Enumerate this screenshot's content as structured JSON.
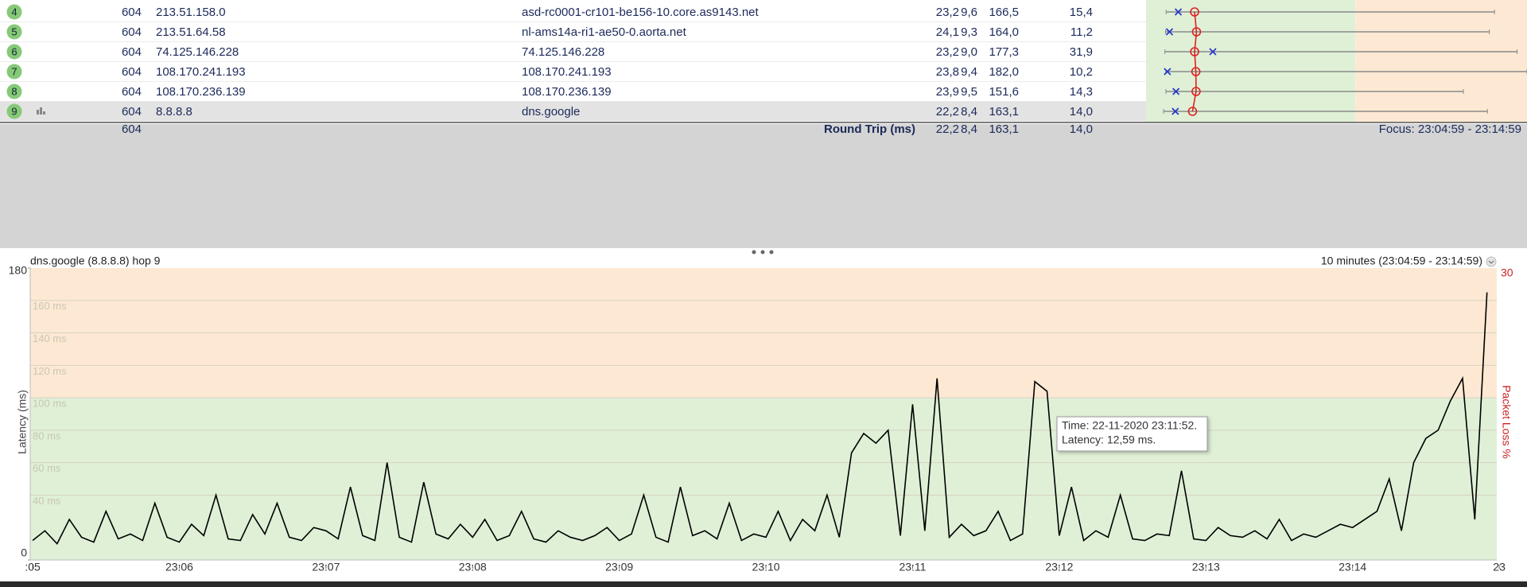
{
  "table": {
    "rows": [
      [
        "4",
        "604",
        "213.51.158.0",
        "asd-rc0001-cr101-be156-10.core.as9143.net",
        "23,2",
        "9,6",
        "166,5",
        "15,4"
      ],
      [
        "5",
        "604",
        "213.51.64.58",
        "nl-ams14a-ri1-ae50-0.aorta.net",
        "24,1",
        "9,3",
        "164,0",
        "11,2"
      ],
      [
        "6",
        "604",
        "74.125.146.228",
        "74.125.146.228",
        "23,2",
        "9,0",
        "177,3",
        "31,9"
      ],
      [
        "7",
        "604",
        "108.170.241.193",
        "108.170.241.193",
        "23,8",
        "9,4",
        "182,0",
        "10,2"
      ],
      [
        "8",
        "604",
        "108.170.236.139",
        "108.170.236.139",
        "23,9",
        "9,5",
        "151,6",
        "14,3"
      ],
      [
        "9",
        "604",
        "8.8.8.8",
        "dns.google",
        "22,2",
        "8,4",
        "163,1",
        "14,0"
      ]
    ],
    "summary": {
      "count": "604",
      "label": "Round Trip (ms)",
      "avg": "22,2",
      "min": "8,4",
      "max": "163,1",
      "cur": "14,0"
    },
    "focus": "Focus: 23:04:59 - 23:14:59"
  },
  "warning_threshold": 100,
  "chart_data": {
    "type": "line",
    "title": "dns.google (8.8.8.8) hop 9",
    "range_label": "10 minutes (23:04:59 - 23:14:59)",
    "y_label": "Latency (ms)",
    "y2_label": "Packet Loss %",
    "color": "#000000",
    "x": [
      "23:05:00",
      "23:05:05",
      "23:05:10",
      "23:05:15",
      "23:05:20",
      "23:05:25",
      "23:05:30",
      "23:05:35",
      "23:05:40",
      "23:05:45",
      "23:05:50",
      "23:05:55",
      "23:06:00",
      "23:06:05",
      "23:06:10",
      "23:06:15",
      "23:06:20",
      "23:06:25",
      "23:06:30",
      "23:06:35",
      "23:06:40",
      "23:06:45",
      "23:06:50",
      "23:06:55",
      "23:07:00",
      "23:07:05",
      "23:07:10",
      "23:07:15",
      "23:07:20",
      "23:07:25",
      "23:07:30",
      "23:07:35",
      "23:07:40",
      "23:07:45",
      "23:07:50",
      "23:07:55",
      "23:08:00",
      "23:08:05",
      "23:08:10",
      "23:08:15",
      "23:08:20",
      "23:08:25",
      "23:08:30",
      "23:08:35",
      "23:08:40",
      "23:08:45",
      "23:08:50",
      "23:08:55",
      "23:09:00",
      "23:09:05",
      "23:09:10",
      "23:09:15",
      "23:09:20",
      "23:09:25",
      "23:09:30",
      "23:09:35",
      "23:09:40",
      "23:09:45",
      "23:09:50",
      "23:09:55",
      "23:10:00",
      "23:10:05",
      "23:10:10",
      "23:10:15",
      "23:10:20",
      "23:10:25",
      "23:10:30",
      "23:10:35",
      "23:10:40",
      "23:10:45",
      "23:10:50",
      "23:10:55",
      "23:11:00",
      "23:11:05",
      "23:11:10",
      "23:11:15",
      "23:11:20",
      "23:11:25",
      "23:11:30",
      "23:11:35",
      "23:11:40",
      "23:11:45",
      "23:11:50",
      "23:11:55",
      "23:12:00",
      "23:12:05",
      "23:12:10",
      "23:12:15",
      "23:12:20",
      "23:12:25",
      "23:12:30",
      "23:12:35",
      "23:12:40",
      "23:12:45",
      "23:12:50",
      "23:12:55",
      "23:13:00",
      "23:13:05",
      "23:13:10",
      "23:13:15",
      "23:13:20",
      "23:13:25",
      "23:13:30",
      "23:13:35",
      "23:13:40",
      "23:13:45",
      "23:13:50",
      "23:13:55",
      "23:14:00",
      "23:14:05",
      "23:14:10",
      "23:14:15",
      "23:14:20",
      "23:14:25",
      "23:14:30",
      "23:14:35",
      "23:14:40",
      "23:14:45",
      "23:14:50",
      "23:14:55"
    ],
    "values": [
      12,
      18,
      10,
      25,
      14,
      11,
      30,
      13,
      16,
      12,
      35,
      14,
      11,
      22,
      15,
      40,
      13,
      12,
      28,
      16,
      35,
      14,
      12,
      20,
      18,
      13,
      45,
      15,
      12,
      60,
      14,
      11,
      48,
      16,
      13,
      22,
      14,
      25,
      12,
      15,
      30,
      13,
      11,
      18,
      14,
      12,
      15,
      20,
      12,
      16,
      40,
      14,
      11,
      45,
      15,
      18,
      13,
      35,
      12,
      16,
      14,
      30,
      12,
      25,
      18,
      40,
      14,
      66,
      78,
      72,
      80,
      15,
      96,
      18,
      112,
      14,
      22,
      15,
      18,
      30,
      12,
      16,
      110,
      104,
      15,
      45,
      12,
      18,
      14,
      40,
      13,
      12,
      16,
      15,
      55,
      13,
      12,
      20,
      15,
      14,
      18,
      13,
      25,
      12,
      16,
      14,
      18,
      22,
      20,
      25,
      30,
      50,
      18,
      60,
      75,
      80,
      98,
      112,
      25,
      165
    ],
    "xlim": [
      "23:04:59",
      "23:14:59"
    ],
    "xticks": [
      {
        "value": "23:05",
        "label": ":05"
      },
      "23:06",
      "23:07",
      "23:08",
      "23:09",
      "23:10",
      "23:11",
      "23:12",
      "23:13",
      "23:14",
      {
        "value": "23:15",
        "label": "23"
      }
    ],
    "ylim": [
      0,
      180
    ],
    "yticks": [
      0,
      {
        "value": 40,
        "label": "40 ms"
      },
      {
        "value": 60,
        "label": "60 ms"
      },
      {
        "value": 80,
        "label": "80 ms"
      },
      {
        "value": 100,
        "label": "100 ms"
      },
      {
        "value": 120,
        "label": "120 ms"
      },
      {
        "value": 140,
        "label": "140 ms"
      },
      {
        "value": 160,
        "label": "160 ms"
      },
      180
    ],
    "y2lim": [
      0,
      30
    ],
    "y2ticks": [
      30
    ],
    "tooltip": {
      "time": "Time: 22-11-2020 23:11:52.",
      "latency": "Latency: 12,59 ms."
    }
  }
}
